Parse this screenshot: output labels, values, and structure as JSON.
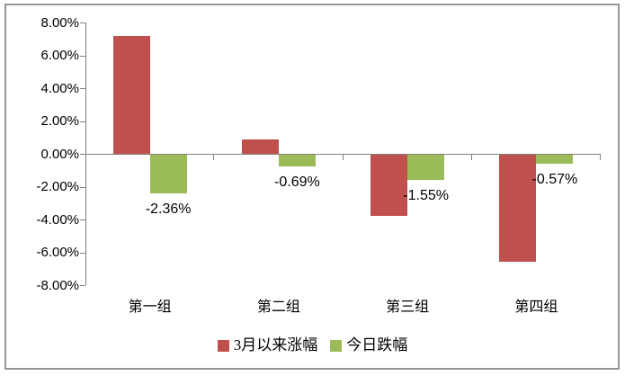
{
  "chart_data": {
    "type": "bar",
    "categories": [
      "第一组",
      "第二组",
      "第三组",
      "第四组"
    ],
    "series": [
      {
        "name": "3月以来涨幅",
        "color": "#C0504D",
        "values": [
          7.2,
          0.9,
          -3.7,
          -6.5
        ]
      },
      {
        "name": "今日跌幅",
        "color": "#9BBB59",
        "values": [
          -2.36,
          -0.69,
          -1.55,
          -0.57
        ],
        "data_labels": [
          "-2.36%",
          "-0.69%",
          "-1.55%",
          "-0.57%"
        ]
      }
    ],
    "title": "",
    "xlabel": "",
    "ylabel": "",
    "ylim": [
      -8,
      8
    ],
    "ytick_step": 2,
    "ytick_labels": [
      "8.00%",
      "6.00%",
      "4.00%",
      "2.00%",
      "0.00%",
      "-2.00%",
      "-4.00%",
      "-6.00%",
      "-8.00%"
    ],
    "grid": false,
    "legend_position": "bottom",
    "axis_color": "#808080",
    "frame_color": "#969696",
    "background": "#FFFFFF"
  }
}
